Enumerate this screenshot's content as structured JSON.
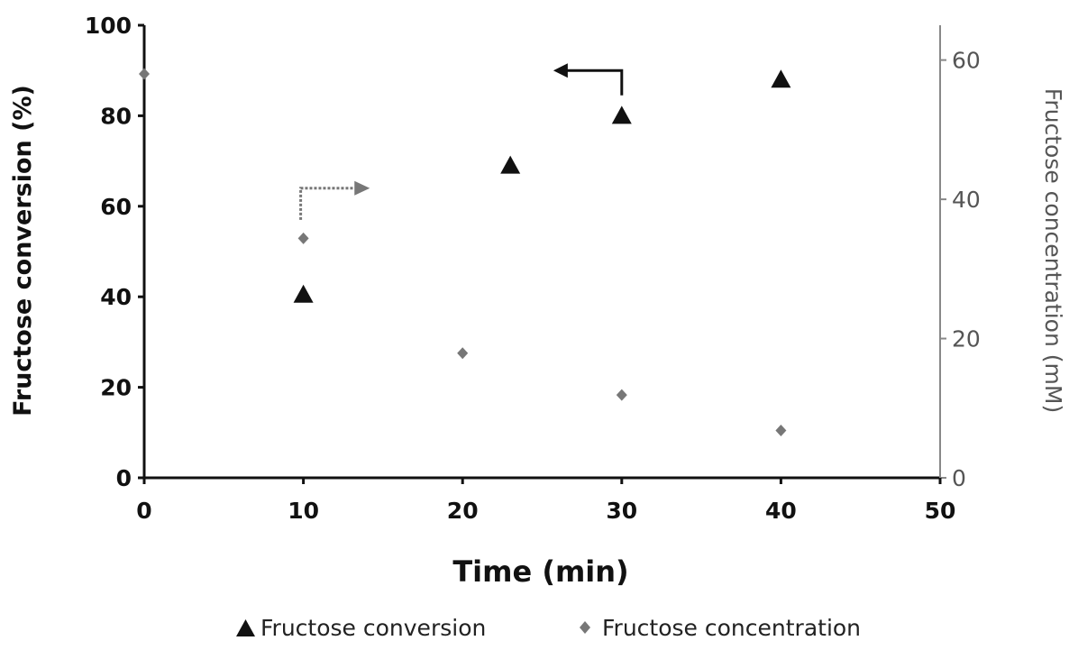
{
  "chart_data": {
    "type": "scatter",
    "title": "",
    "xlabel": "Time (min)",
    "ylabel": "Fructose conversion (%)",
    "y2label": "Fructose concentration (mM)",
    "xlim": [
      0,
      50
    ],
    "ylim": [
      0,
      100
    ],
    "y2lim": [
      0,
      65
    ],
    "x_ticks": [
      0,
      10,
      20,
      30,
      40,
      50
    ],
    "y_ticks": [
      0,
      20,
      40,
      60,
      80,
      100
    ],
    "y2_ticks": [
      0,
      20,
      40,
      60
    ],
    "grid": false,
    "legend_position": "bottom",
    "series": [
      {
        "name": "Fructose conversion",
        "axis": "left",
        "marker": "triangle",
        "color": "#111111",
        "points": [
          {
            "x": 10,
            "y": 40.5
          },
          {
            "x": 23,
            "y": 69
          },
          {
            "x": 30,
            "y": 80
          },
          {
            "x": 40,
            "y": 88
          }
        ]
      },
      {
        "name": "Fructose concentration",
        "axis": "right",
        "marker": "diamond",
        "color": "#777777",
        "points": [
          {
            "x": 0,
            "y": 58
          },
          {
            "x": 10,
            "y": 34.4
          },
          {
            "x": 20,
            "y": 17.9
          },
          {
            "x": 30,
            "y": 11.9
          },
          {
            "x": 40,
            "y": 6.8
          }
        ]
      }
    ],
    "annotations": [
      {
        "kind": "arrow",
        "points_to": "right-axis",
        "color": "#777777"
      },
      {
        "kind": "arrow",
        "points_to": "left-axis",
        "color": "#111111"
      }
    ]
  }
}
